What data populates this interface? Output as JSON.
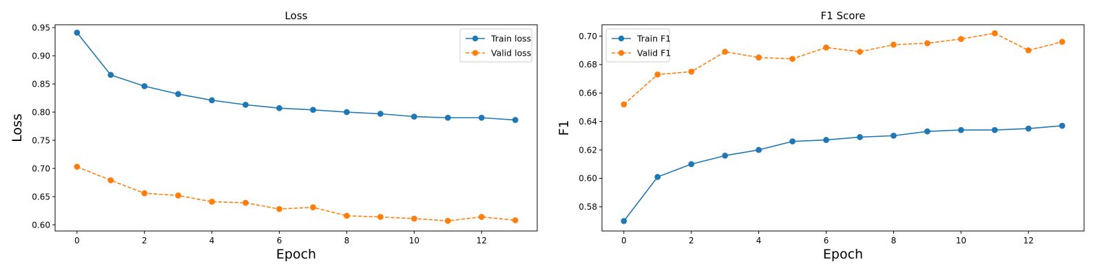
{
  "chart_data": [
    {
      "type": "line",
      "title": "Loss",
      "xlabel": "Epoch",
      "ylabel": "Loss",
      "x": [
        0,
        1,
        2,
        3,
        4,
        5,
        6,
        7,
        8,
        9,
        10,
        11,
        12,
        13
      ],
      "xlim": [
        -0.65,
        13.65
      ],
      "ylim": [
        0.589,
        0.955
      ],
      "xticks": [
        0,
        2,
        4,
        6,
        8,
        10,
        12
      ],
      "xtick_labels": [
        "0",
        "2",
        "4",
        "6",
        "8",
        "10",
        "12"
      ],
      "yticks": [
        0.6,
        0.65,
        0.7,
        0.75,
        0.8,
        0.85,
        0.9,
        0.95
      ],
      "ytick_labels": [
        "0.60",
        "0.65",
        "0.70",
        "0.75",
        "0.80",
        "0.85",
        "0.90",
        "0.95"
      ],
      "grid": false,
      "legend_position": "top-right",
      "series": [
        {
          "name": "Train loss",
          "color": "#1f77b4",
          "linestyle": "solid",
          "marker": "circle",
          "values": [
            0.941,
            0.866,
            0.846,
            0.832,
            0.821,
            0.813,
            0.807,
            0.804,
            0.8,
            0.797,
            0.792,
            0.79,
            0.79,
            0.786
          ]
        },
        {
          "name": "Valid loss",
          "color": "#ff7f0e",
          "linestyle": "dashed",
          "marker": "circle",
          "values": [
            0.703,
            0.679,
            0.656,
            0.652,
            0.641,
            0.639,
            0.628,
            0.631,
            0.616,
            0.614,
            0.611,
            0.607,
            0.614,
            0.608
          ]
        }
      ]
    },
    {
      "type": "line",
      "title": "F1 Score",
      "xlabel": "Epoch",
      "ylabel": "F1",
      "x": [
        0,
        1,
        2,
        3,
        4,
        5,
        6,
        7,
        8,
        9,
        10,
        11,
        12,
        13
      ],
      "xlim": [
        -0.65,
        13.65
      ],
      "ylim": [
        0.563,
        0.708
      ],
      "xticks": [
        0,
        2,
        4,
        6,
        8,
        10,
        12
      ],
      "xtick_labels": [
        "0",
        "2",
        "4",
        "6",
        "8",
        "10",
        "12"
      ],
      "yticks": [
        0.58,
        0.6,
        0.62,
        0.64,
        0.66,
        0.68,
        0.7
      ],
      "ytick_labels": [
        "0.58",
        "0.60",
        "0.62",
        "0.64",
        "0.66",
        "0.68",
        "0.70"
      ],
      "grid": false,
      "legend_position": "top-left",
      "series": [
        {
          "name": "Train F1",
          "color": "#1f77b4",
          "linestyle": "solid",
          "marker": "circle",
          "values": [
            0.57,
            0.601,
            0.61,
            0.616,
            0.62,
            0.626,
            0.627,
            0.629,
            0.63,
            0.633,
            0.634,
            0.634,
            0.635,
            0.637
          ]
        },
        {
          "name": "Valid F1",
          "color": "#ff7f0e",
          "linestyle": "dashed",
          "marker": "circle",
          "values": [
            0.652,
            0.673,
            0.675,
            0.689,
            0.685,
            0.684,
            0.692,
            0.689,
            0.694,
            0.695,
            0.698,
            0.702,
            0.69,
            0.696
          ]
        }
      ]
    }
  ]
}
